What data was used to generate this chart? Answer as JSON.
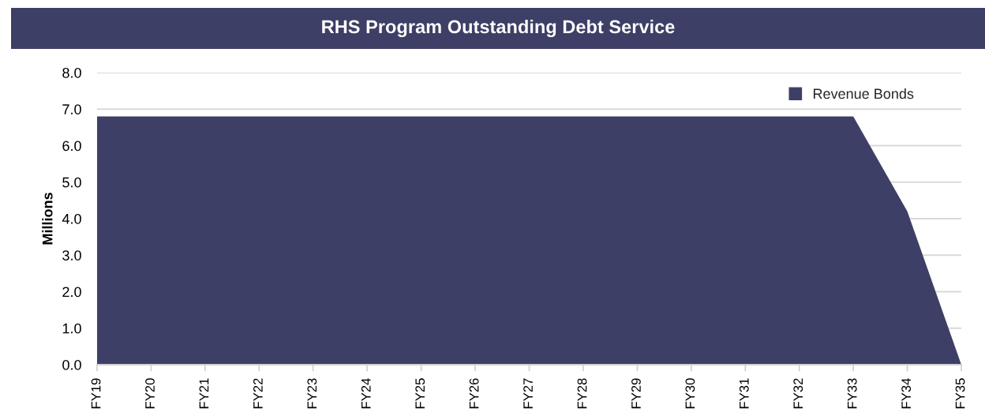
{
  "chart_data": {
    "type": "area",
    "title": "RHS Program Outstanding Debt Service",
    "ylabel": "Millions",
    "categories": [
      "FY19",
      "FY20",
      "FY21",
      "FY22",
      "FY23",
      "FY24",
      "FY25",
      "FY26",
      "FY27",
      "FY28",
      "FY29",
      "FY30",
      "FY31",
      "FY32",
      "FY33",
      "FY34",
      "FY35"
    ],
    "series": [
      {
        "name": "Revenue Bonds",
        "color": "#3e3f66",
        "values": [
          6.8,
          6.8,
          6.8,
          6.8,
          6.8,
          6.8,
          6.8,
          6.8,
          6.8,
          6.8,
          6.8,
          6.8,
          6.8,
          6.8,
          6.8,
          4.2,
          0.0
        ]
      }
    ],
    "ylim": [
      0,
      8
    ],
    "yticks": [
      {
        "value": 0,
        "label": "0.0"
      },
      {
        "value": 1,
        "label": "1.0"
      },
      {
        "value": 2,
        "label": "2.0"
      },
      {
        "value": 3,
        "label": "3.0"
      },
      {
        "value": 4,
        "label": "4.0"
      },
      {
        "value": 5,
        "label": "5.0"
      },
      {
        "value": 6,
        "label": "6.0"
      },
      {
        "value": 7,
        "label": "7.0"
      },
      {
        "value": 8,
        "label": "8.0"
      }
    ],
    "grid": "y",
    "legend": "top right"
  }
}
